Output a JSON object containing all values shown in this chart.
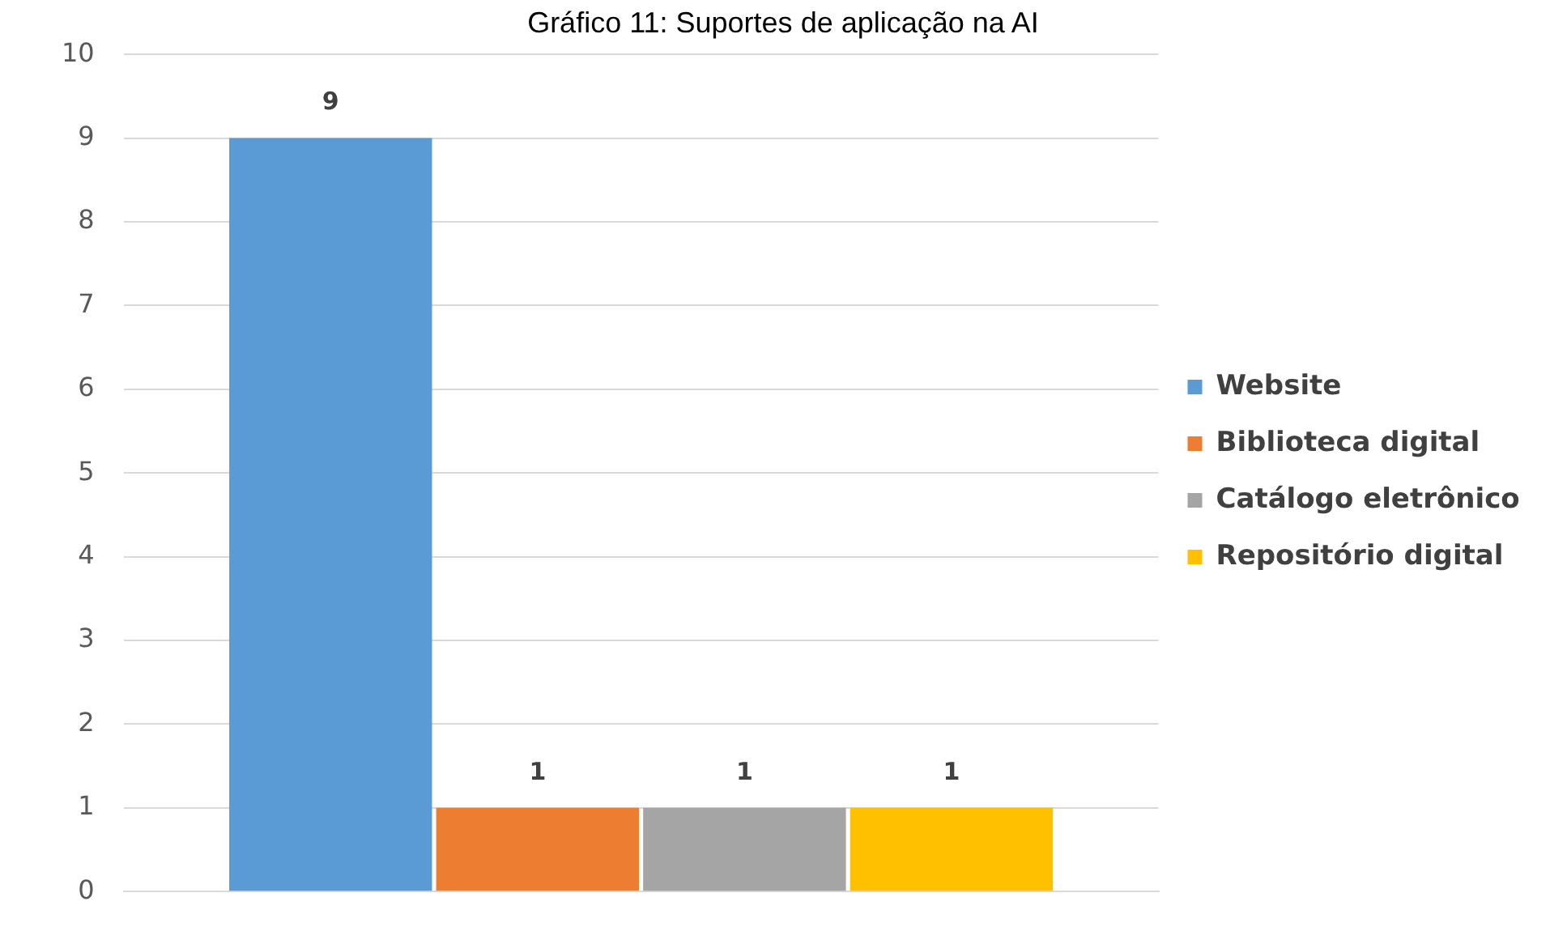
{
  "chart_data": {
    "type": "bar",
    "title": "Gráfico 11: Suportes de aplicação na AI",
    "categories": [
      null
    ],
    "series": [
      {
        "name": "Website",
        "color": "#5b9bd5",
        "values": [
          9
        ]
      },
      {
        "name": "Biblioteca digital",
        "color": "#ed7d31",
        "values": [
          1
        ]
      },
      {
        "name": "Catálogo eletrônico",
        "color": "#a5a5a5",
        "values": [
          1
        ]
      },
      {
        "name": "Repositório digital",
        "color": "#ffc000",
        "values": [
          1
        ]
      }
    ],
    "ylim": [
      0,
      10
    ],
    "yticks": [
      0,
      1,
      2,
      3,
      4,
      5,
      6,
      7,
      8,
      9,
      10
    ],
    "grid": "y",
    "legend": "right",
    "data_labels": true
  }
}
